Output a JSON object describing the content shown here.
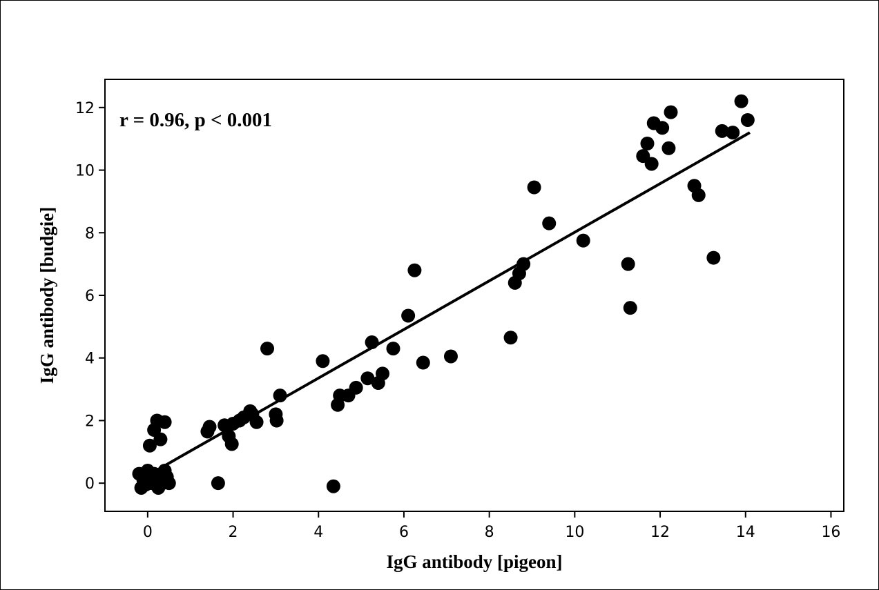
{
  "chart_data": {
    "type": "scatter",
    "xlabel": "IgG antibody [pigeon]",
    "ylabel": "IgG antibody [budgie]",
    "annotation": "r = 0.96, p < 0.001",
    "xlim": [
      -1,
      16.3
    ],
    "ylim": [
      -0.9,
      12.9
    ],
    "xticks": [
      0,
      2,
      4,
      6,
      8,
      10,
      12,
      14,
      16
    ],
    "yticks": [
      0,
      2,
      4,
      6,
      8,
      10,
      12
    ],
    "grid": false,
    "marker_color": "#000000",
    "points": [
      {
        "x": -0.2,
        "y": 0.3
      },
      {
        "x": -0.15,
        "y": -0.15
      },
      {
        "x": -0.1,
        "y": 0.1
      },
      {
        "x": -0.05,
        "y": -0.05
      },
      {
        "x": 0.0,
        "y": 0.4
      },
      {
        "x": 0.05,
        "y": 0.2
      },
      {
        "x": 0.1,
        "y": 0.0
      },
      {
        "x": 0.15,
        "y": 0.3
      },
      {
        "x": 0.2,
        "y": 0.1
      },
      {
        "x": 0.25,
        "y": -0.15
      },
      {
        "x": 0.3,
        "y": 0.2
      },
      {
        "x": 0.35,
        "y": 0.0
      },
      {
        "x": 0.4,
        "y": 0.4
      },
      {
        "x": 0.45,
        "y": 0.2
      },
      {
        "x": 0.5,
        "y": 0.0
      },
      {
        "x": 0.05,
        "y": 1.2
      },
      {
        "x": 0.15,
        "y": 1.7
      },
      {
        "x": 0.22,
        "y": 2.0
      },
      {
        "x": 0.3,
        "y": 1.4
      },
      {
        "x": 0.4,
        "y": 1.95
      },
      {
        "x": 1.4,
        "y": 1.65
      },
      {
        "x": 1.45,
        "y": 1.8
      },
      {
        "x": 1.65,
        "y": 0.0
      },
      {
        "x": 1.8,
        "y": 1.85
      },
      {
        "x": 1.9,
        "y": 1.5
      },
      {
        "x": 1.97,
        "y": 1.25
      },
      {
        "x": 2.0,
        "y": 1.9
      },
      {
        "x": 2.15,
        "y": 2.0
      },
      {
        "x": 2.25,
        "y": 2.1
      },
      {
        "x": 2.4,
        "y": 2.3
      },
      {
        "x": 2.45,
        "y": 2.2
      },
      {
        "x": 2.55,
        "y": 1.95
      },
      {
        "x": 2.8,
        "y": 4.3
      },
      {
        "x": 3.0,
        "y": 2.2
      },
      {
        "x": 3.02,
        "y": 2.0
      },
      {
        "x": 3.1,
        "y": 2.8
      },
      {
        "x": 4.1,
        "y": 3.9
      },
      {
        "x": 4.35,
        "y": -0.1
      },
      {
        "x": 4.45,
        "y": 2.5
      },
      {
        "x": 4.5,
        "y": 2.8
      },
      {
        "x": 4.7,
        "y": 2.8
      },
      {
        "x": 4.88,
        "y": 3.05
      },
      {
        "x": 5.15,
        "y": 3.35
      },
      {
        "x": 5.25,
        "y": 4.5
      },
      {
        "x": 5.4,
        "y": 3.2
      },
      {
        "x": 5.5,
        "y": 3.5
      },
      {
        "x": 5.75,
        "y": 4.3
      },
      {
        "x": 6.1,
        "y": 5.35
      },
      {
        "x": 6.25,
        "y": 6.8
      },
      {
        "x": 6.45,
        "y": 3.85
      },
      {
        "x": 7.1,
        "y": 4.05
      },
      {
        "x": 8.5,
        "y": 4.65
      },
      {
        "x": 8.6,
        "y": 6.4
      },
      {
        "x": 8.7,
        "y": 6.7
      },
      {
        "x": 8.8,
        "y": 7.0
      },
      {
        "x": 9.05,
        "y": 9.45
      },
      {
        "x": 9.4,
        "y": 8.3
      },
      {
        "x": 10.2,
        "y": 7.75
      },
      {
        "x": 11.25,
        "y": 7.0
      },
      {
        "x": 11.3,
        "y": 5.6
      },
      {
        "x": 11.6,
        "y": 10.45
      },
      {
        "x": 11.7,
        "y": 10.85
      },
      {
        "x": 11.8,
        "y": 10.2
      },
      {
        "x": 11.85,
        "y": 11.5
      },
      {
        "x": 12.05,
        "y": 11.35
      },
      {
        "x": 12.2,
        "y": 10.7
      },
      {
        "x": 12.25,
        "y": 11.85
      },
      {
        "x": 12.8,
        "y": 9.5
      },
      {
        "x": 12.9,
        "y": 9.2
      },
      {
        "x": 13.25,
        "y": 7.2
      },
      {
        "x": 13.45,
        "y": 11.25
      },
      {
        "x": 13.7,
        "y": 11.2
      },
      {
        "x": 13.9,
        "y": 12.2
      },
      {
        "x": 14.05,
        "y": 11.6
      }
    ],
    "regression_line": {
      "x": [
        0,
        14.1
      ],
      "y": [
        0.25,
        11.2
      ]
    }
  }
}
